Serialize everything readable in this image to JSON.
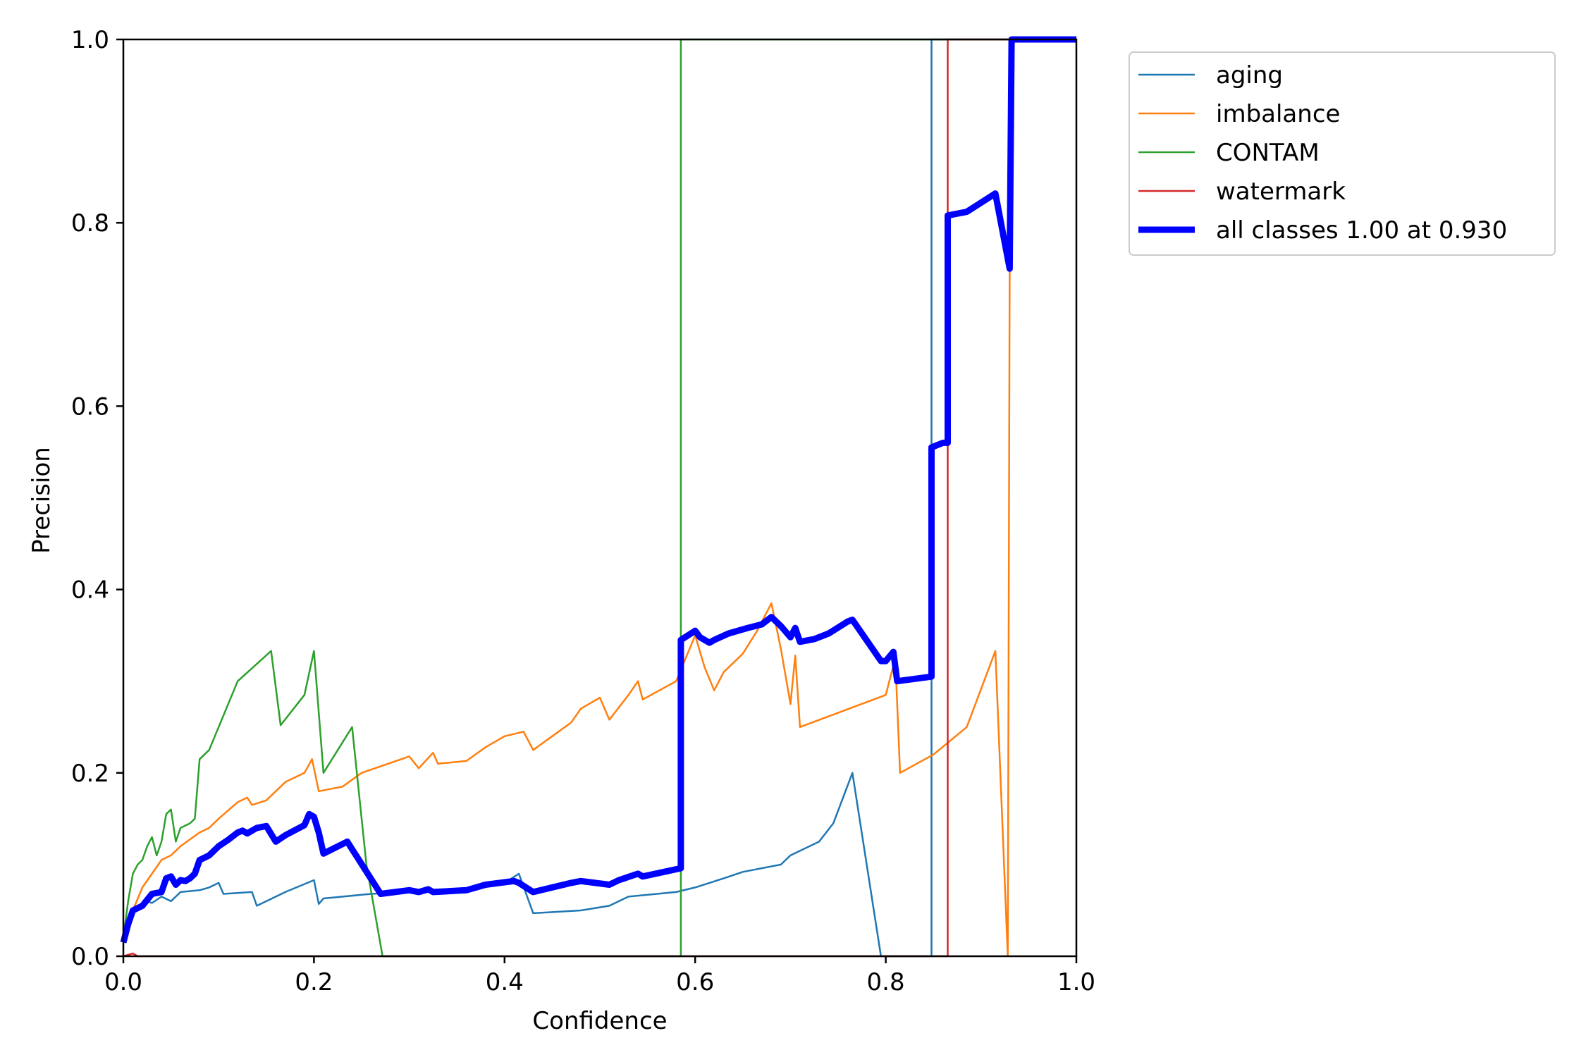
{
  "chart_data": {
    "type": "line",
    "xlabel": "Confidence",
    "ylabel": "Precision",
    "xlim": [
      0,
      1
    ],
    "ylim": [
      0,
      1
    ],
    "x_ticks": [
      "0.0",
      "0.2",
      "0.4",
      "0.6",
      "0.8",
      "1.0"
    ],
    "y_ticks": [
      "0.0",
      "0.2",
      "0.4",
      "0.6",
      "0.8",
      "1.0"
    ],
    "grid": false,
    "legend_position": "outside-top-right",
    "series": [
      {
        "name": "aging",
        "color": "#1f77b4",
        "width": "thin",
        "points": [
          [
            0.0,
            0.02
          ],
          [
            0.01,
            0.05
          ],
          [
            0.02,
            0.055
          ],
          [
            0.025,
            0.06
          ],
          [
            0.03,
            0.058
          ],
          [
            0.04,
            0.065
          ],
          [
            0.05,
            0.06
          ],
          [
            0.06,
            0.07
          ],
          [
            0.08,
            0.072
          ],
          [
            0.09,
            0.075
          ],
          [
            0.1,
            0.08
          ],
          [
            0.105,
            0.068
          ],
          [
            0.135,
            0.07
          ],
          [
            0.14,
            0.055
          ],
          [
            0.17,
            0.07
          ],
          [
            0.2,
            0.083
          ],
          [
            0.205,
            0.057
          ],
          [
            0.21,
            0.063
          ],
          [
            0.26,
            0.068
          ],
          [
            0.3,
            0.07
          ],
          [
            0.35,
            0.073
          ],
          [
            0.4,
            0.08
          ],
          [
            0.415,
            0.09
          ],
          [
            0.43,
            0.047
          ],
          [
            0.48,
            0.05
          ],
          [
            0.51,
            0.055
          ],
          [
            0.53,
            0.065
          ],
          [
            0.58,
            0.07
          ],
          [
            0.6,
            0.075
          ],
          [
            0.63,
            0.085
          ],
          [
            0.65,
            0.092
          ],
          [
            0.69,
            0.1
          ],
          [
            0.7,
            0.11
          ],
          [
            0.73,
            0.125
          ],
          [
            0.745,
            0.145
          ],
          [
            0.765,
            0.2
          ],
          [
            0.795,
            0.0
          ],
          [
            0.848,
            0.0
          ],
          [
            0.848,
            1.0
          ],
          [
            1.0,
            1.0
          ]
        ]
      },
      {
        "name": "imbalance",
        "color": "#ff7f0e",
        "width": "thin",
        "points": [
          [
            0.0,
            0.02
          ],
          [
            0.01,
            0.05
          ],
          [
            0.02,
            0.075
          ],
          [
            0.03,
            0.09
          ],
          [
            0.04,
            0.105
          ],
          [
            0.05,
            0.11
          ],
          [
            0.06,
            0.12
          ],
          [
            0.08,
            0.135
          ],
          [
            0.09,
            0.14
          ],
          [
            0.1,
            0.15
          ],
          [
            0.12,
            0.168
          ],
          [
            0.13,
            0.173
          ],
          [
            0.135,
            0.165
          ],
          [
            0.15,
            0.17
          ],
          [
            0.17,
            0.19
          ],
          [
            0.19,
            0.2
          ],
          [
            0.198,
            0.215
          ],
          [
            0.205,
            0.18
          ],
          [
            0.23,
            0.185
          ],
          [
            0.25,
            0.2
          ],
          [
            0.3,
            0.218
          ],
          [
            0.31,
            0.205
          ],
          [
            0.325,
            0.222
          ],
          [
            0.33,
            0.21
          ],
          [
            0.36,
            0.213
          ],
          [
            0.38,
            0.228
          ],
          [
            0.4,
            0.24
          ],
          [
            0.42,
            0.245
          ],
          [
            0.43,
            0.225
          ],
          [
            0.45,
            0.24
          ],
          [
            0.47,
            0.255
          ],
          [
            0.48,
            0.27
          ],
          [
            0.5,
            0.282
          ],
          [
            0.51,
            0.258
          ],
          [
            0.53,
            0.285
          ],
          [
            0.54,
            0.3
          ],
          [
            0.545,
            0.28
          ],
          [
            0.58,
            0.3
          ],
          [
            0.6,
            0.35
          ],
          [
            0.61,
            0.315
          ],
          [
            0.62,
            0.29
          ],
          [
            0.63,
            0.31
          ],
          [
            0.65,
            0.33
          ],
          [
            0.665,
            0.355
          ],
          [
            0.68,
            0.385
          ],
          [
            0.69,
            0.335
          ],
          [
            0.7,
            0.275
          ],
          [
            0.705,
            0.328
          ],
          [
            0.71,
            0.25
          ],
          [
            0.8,
            0.285
          ],
          [
            0.81,
            0.325
          ],
          [
            0.815,
            0.2
          ],
          [
            0.85,
            0.22
          ],
          [
            0.885,
            0.25
          ],
          [
            0.915,
            0.333
          ],
          [
            0.928,
            0.0
          ],
          [
            0.93,
            0.75
          ],
          [
            0.932,
            1.0
          ],
          [
            1.0,
            1.0
          ]
        ]
      },
      {
        "name": "CONTAM",
        "color": "#2ca02c",
        "width": "thin",
        "points": [
          [
            0.0,
            0.02
          ],
          [
            0.005,
            0.06
          ],
          [
            0.01,
            0.09
          ],
          [
            0.015,
            0.1
          ],
          [
            0.02,
            0.105
          ],
          [
            0.025,
            0.12
          ],
          [
            0.03,
            0.13
          ],
          [
            0.035,
            0.11
          ],
          [
            0.04,
            0.125
          ],
          [
            0.045,
            0.155
          ],
          [
            0.05,
            0.16
          ],
          [
            0.055,
            0.125
          ],
          [
            0.06,
            0.14
          ],
          [
            0.07,
            0.145
          ],
          [
            0.075,
            0.15
          ],
          [
            0.08,
            0.215
          ],
          [
            0.09,
            0.225
          ],
          [
            0.1,
            0.25
          ],
          [
            0.11,
            0.275
          ],
          [
            0.12,
            0.3
          ],
          [
            0.155,
            0.333
          ],
          [
            0.165,
            0.252
          ],
          [
            0.19,
            0.285
          ],
          [
            0.2,
            0.333
          ],
          [
            0.21,
            0.2
          ],
          [
            0.24,
            0.25
          ],
          [
            0.255,
            0.1
          ],
          [
            0.272,
            0.0
          ],
          [
            0.585,
            0.0
          ],
          [
            0.585,
            1.0
          ],
          [
            1.0,
            1.0
          ]
        ]
      },
      {
        "name": "watermark",
        "color": "#d62728",
        "width": "thin",
        "points": [
          [
            0.0,
            0.0
          ],
          [
            0.01,
            0.003
          ],
          [
            0.015,
            0.0
          ],
          [
            0.865,
            0.0
          ],
          [
            0.865,
            1.0
          ],
          [
            1.0,
            1.0
          ]
        ]
      },
      {
        "name": "all classes 1.00 at 0.930",
        "color": "#0000ff",
        "width": "thick",
        "points": [
          [
            0.0,
            0.015
          ],
          [
            0.005,
            0.035
          ],
          [
            0.01,
            0.05
          ],
          [
            0.02,
            0.055
          ],
          [
            0.03,
            0.068
          ],
          [
            0.04,
            0.07
          ],
          [
            0.045,
            0.085
          ],
          [
            0.05,
            0.087
          ],
          [
            0.055,
            0.078
          ],
          [
            0.06,
            0.083
          ],
          [
            0.065,
            0.082
          ],
          [
            0.07,
            0.085
          ],
          [
            0.075,
            0.09
          ],
          [
            0.08,
            0.105
          ],
          [
            0.09,
            0.11
          ],
          [
            0.1,
            0.12
          ],
          [
            0.11,
            0.127
          ],
          [
            0.12,
            0.135
          ],
          [
            0.125,
            0.137
          ],
          [
            0.13,
            0.134
          ],
          [
            0.14,
            0.14
          ],
          [
            0.15,
            0.142
          ],
          [
            0.16,
            0.125
          ],
          [
            0.17,
            0.132
          ],
          [
            0.19,
            0.143
          ],
          [
            0.195,
            0.155
          ],
          [
            0.2,
            0.152
          ],
          [
            0.205,
            0.135
          ],
          [
            0.21,
            0.112
          ],
          [
            0.235,
            0.125
          ],
          [
            0.27,
            0.068
          ],
          [
            0.3,
            0.072
          ],
          [
            0.31,
            0.07
          ],
          [
            0.32,
            0.073
          ],
          [
            0.325,
            0.07
          ],
          [
            0.36,
            0.072
          ],
          [
            0.38,
            0.078
          ],
          [
            0.41,
            0.082
          ],
          [
            0.415,
            0.08
          ],
          [
            0.43,
            0.07
          ],
          [
            0.45,
            0.075
          ],
          [
            0.47,
            0.08
          ],
          [
            0.48,
            0.082
          ],
          [
            0.51,
            0.078
          ],
          [
            0.52,
            0.083
          ],
          [
            0.54,
            0.09
          ],
          [
            0.545,
            0.087
          ],
          [
            0.585,
            0.096
          ],
          [
            0.585,
            0.345
          ],
          [
            0.6,
            0.355
          ],
          [
            0.605,
            0.348
          ],
          [
            0.615,
            0.342
          ],
          [
            0.62,
            0.345
          ],
          [
            0.635,
            0.352
          ],
          [
            0.655,
            0.358
          ],
          [
            0.67,
            0.362
          ],
          [
            0.68,
            0.37
          ],
          [
            0.69,
            0.36
          ],
          [
            0.7,
            0.348
          ],
          [
            0.705,
            0.358
          ],
          [
            0.71,
            0.343
          ],
          [
            0.725,
            0.346
          ],
          [
            0.74,
            0.352
          ],
          [
            0.76,
            0.365
          ],
          [
            0.765,
            0.367
          ],
          [
            0.795,
            0.322
          ],
          [
            0.8,
            0.322
          ],
          [
            0.808,
            0.332
          ],
          [
            0.812,
            0.3
          ],
          [
            0.848,
            0.305
          ],
          [
            0.848,
            0.555
          ],
          [
            0.86,
            0.56
          ],
          [
            0.865,
            0.56
          ],
          [
            0.865,
            0.808
          ],
          [
            0.885,
            0.812
          ],
          [
            0.915,
            0.832
          ],
          [
            0.93,
            0.75
          ],
          [
            0.932,
            1.0
          ],
          [
            1.0,
            1.0
          ]
        ]
      }
    ]
  }
}
